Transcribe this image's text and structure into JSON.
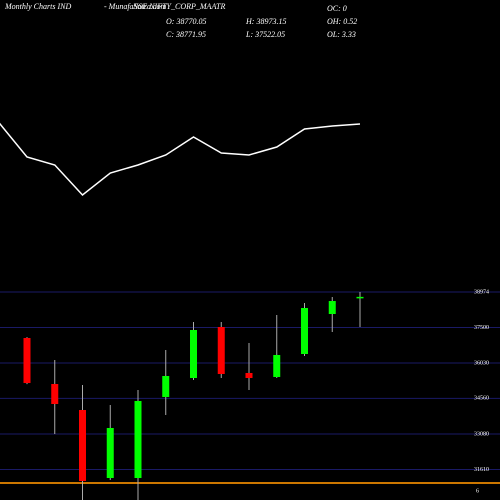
{
  "chart_data": [
    {
      "type": "candlestick",
      "title": "Monthly Charts IND",
      "source": "- MunafaSutra.com",
      "symbol": "NSE NIFTY_CORP_MAATR",
      "open": [
        37065,
        35156,
        34077,
        31255,
        31255,
        34617,
        35405,
        37521,
        35613,
        35447,
        36401,
        38061,
        38770.05
      ],
      "high": [
        37100,
        36152,
        35114,
        34284,
        34907,
        36567,
        37729,
        37729,
        36857,
        38020,
        38518,
        38766,
        38973.15
      ],
      "low": [
        35150,
        33081,
        30342,
        31172,
        30342,
        33869,
        35322,
        35405,
        34907,
        35405,
        36318,
        37314,
        37522.05
      ],
      "close": [
        35197,
        34326,
        31130,
        33330,
        34451,
        35488,
        37397,
        35571,
        35405,
        36360,
        38310,
        38600,
        38771.95
      ],
      "stats": [
        {
          "label": "OC:",
          "value": 0
        },
        {
          "label": "OH:",
          "value": 0.52
        },
        {
          "label": "OL:",
          "value": 3.33
        }
      ],
      "stat_labels": {
        "open": "O:",
        "high": "H:",
        "low": "L:",
        "close": "C:"
      },
      "up_color": "#00ff00",
      "down_color": "#ff0000",
      "ylim": [
        30342,
        39472
      ],
      "yticks": [
        38974,
        37500,
        36030,
        34560,
        33080,
        31610
      ],
      "grid": true,
      "baseline_label": "6"
    },
    {
      "type": "line",
      "values": [
        77,
        43,
        35,
        5,
        27,
        35,
        45,
        63,
        47,
        45,
        53,
        71,
        74,
        76
      ],
      "color": "#ffffff",
      "ylim": [
        0,
        100
      ]
    }
  ]
}
